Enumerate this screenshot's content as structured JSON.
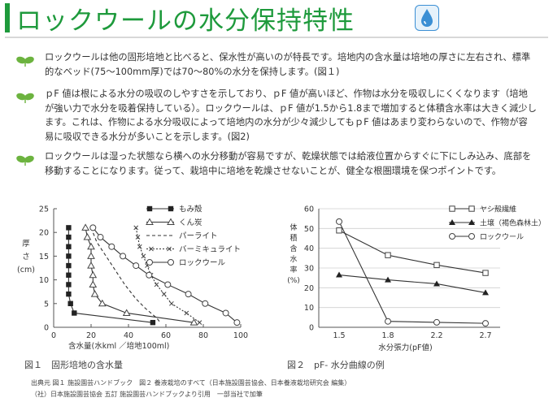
{
  "title": "ロックウールの水分保持特性",
  "paragraphs": [
    "ロックウールは他の固形培地と比べると、保水性が高いのが特長です。培地内の含水量は培地の厚さに左右され、標準的なベッド(75〜100mm厚)では70〜80%の水分を保持します。(図１)",
    "ｐF 値は根による水分の吸収のしやすさを示しており、ｐF 値が高いほど、作物は水分を吸収しにくくなります（培地が強い力で水分を吸着保持している）。ロックウールは、ｐF 値が1.5から1.8まで増加すると体積含水率は大きく減少します。これは、作物による水分吸収によって培地内の水分が少々減少してもｐF 値はあまり変わらないので、作物が容易に吸収できる水分が多いことを示します。(図2)",
    "ロックウールは湿った状態なら横への水分移動が容易ですが、乾燥状態では給液位置からすぐに下にしみ込み、底部を移動することになります。従って、栽培中に培地を乾燥させないことが、健全な根圏環境を保つポイントです。"
  ],
  "colors": {
    "accent": "#1e9a3c",
    "leaf": "#6cb33f",
    "water": "#3b8fd4"
  },
  "icons": {
    "title_icon": "water-drop-icon",
    "bullet_icon": "sprout-icon"
  },
  "captions": {
    "fig1": "図１　固形培地の含水量",
    "fig2": "図２　pF- 水分曲線の例"
  },
  "source_lines": [
    "出典元 図１ 施設園芸ハンドブック　図２ 養液栽培のすべて（日本施設園芸協会、日本養液栽培研究会 編集）",
    "（社）日本施設園芸協会 五訂 施設園芸ハンドブックより引用　一部当社で加筆"
  ],
  "chart_data": [
    {
      "type": "line",
      "xlabel": "含水量(水kml ／培地100ml)",
      "ylabel": [
        "厚",
        "さ",
        "(cm)"
      ],
      "xlim": [
        0,
        100
      ],
      "ylim": [
        0,
        25
      ],
      "x_ticks": [
        0,
        20,
        40,
        60,
        80,
        100
      ],
      "y_ticks": [
        0,
        5,
        10,
        15,
        20,
        25
      ],
      "x_tick_labels": [
        "0",
        "20",
        "40",
        "60",
        "80",
        "100"
      ],
      "y_tick_labels": [
        "0",
        "5",
        "10",
        "15",
        "20",
        "25"
      ],
      "grid": false,
      "legend_position": "top-right",
      "series": [
        {
          "name": "もみ殻",
          "marker": "square-filled",
          "dash": "solid",
          "points": [
            [
              8,
              21
            ],
            [
              8,
              19
            ],
            [
              8,
              17
            ],
            [
              8,
              15
            ],
            [
              8,
              13
            ],
            [
              8,
              11
            ],
            [
              8,
              9
            ],
            [
              8,
              7
            ],
            [
              9,
              5
            ],
            [
              11,
              3
            ],
            [
              53,
              1
            ]
          ]
        },
        {
          "name": "くん炭",
          "marker": "triangle-open",
          "dash": "solid",
          "points": [
            [
              17,
              21
            ],
            [
              18,
              19
            ],
            [
              20,
              17
            ],
            [
              20,
              15
            ],
            [
              20,
              13
            ],
            [
              21,
              11
            ],
            [
              21,
              9
            ],
            [
              22,
              7
            ],
            [
              26,
              5
            ],
            [
              39,
              3
            ],
            [
              75,
              1
            ]
          ]
        },
        {
          "name": "パーライト",
          "marker": "none",
          "dash": "dashed",
          "points": [
            [
              20,
              21
            ],
            [
              23,
              18
            ],
            [
              28,
              15
            ],
            [
              33,
              12
            ],
            [
              38,
              9
            ],
            [
              44,
              6
            ],
            [
              49,
              4
            ],
            [
              55,
              2
            ],
            [
              57,
              1
            ]
          ]
        },
        {
          "name": "バーミキュライト",
          "marker": "x",
          "dash": "dotted",
          "points": [
            [
              44,
              21
            ],
            [
              45,
              19
            ],
            [
              46,
              17
            ],
            [
              48,
              15
            ],
            [
              50,
              13
            ],
            [
              52,
              11
            ],
            [
              55,
              9
            ],
            [
              59,
              7
            ],
            [
              63,
              5
            ],
            [
              71,
              3
            ],
            [
              78,
              1
            ]
          ]
        },
        {
          "name": "ロックウール",
          "marker": "circle-open",
          "dash": "solid",
          "points": [
            [
              21,
              21
            ],
            [
              25,
              19
            ],
            [
              31,
              17
            ],
            [
              37,
              15
            ],
            [
              44,
              13
            ],
            [
              51,
              11
            ],
            [
              61,
              9
            ],
            [
              72,
              7
            ],
            [
              81,
              5
            ],
            [
              92,
              3
            ],
            [
              98,
              1
            ]
          ]
        }
      ]
    },
    {
      "type": "line",
      "xlabel": "水分張力(pF値)",
      "ylabel": [
        "体",
        "積",
        "含",
        "水",
        "率",
        "(%)"
      ],
      "categories": [
        "1.5",
        "1.8",
        "2.2",
        "2.7"
      ],
      "ylim": [
        0,
        60
      ],
      "y_ticks": [
        0,
        10,
        20,
        30,
        40,
        50,
        60
      ],
      "y_tick_labels": [
        "0",
        "10",
        "20",
        "30",
        "40",
        "50",
        "60"
      ],
      "grid": true,
      "legend_position": "top-right",
      "series": [
        {
          "name": "ヤシ殻繊維",
          "marker": "square-open",
          "values": [
            49,
            36.5,
            31.5,
            27.5
          ]
        },
        {
          "name": "土壌（褐色森林土）",
          "marker": "triangle-filled",
          "values": [
            26.5,
            24,
            22,
            17.5
          ]
        },
        {
          "name": "ロックウール",
          "marker": "circle-open",
          "values": [
            53.5,
            3,
            2.5,
            2
          ]
        }
      ]
    }
  ]
}
